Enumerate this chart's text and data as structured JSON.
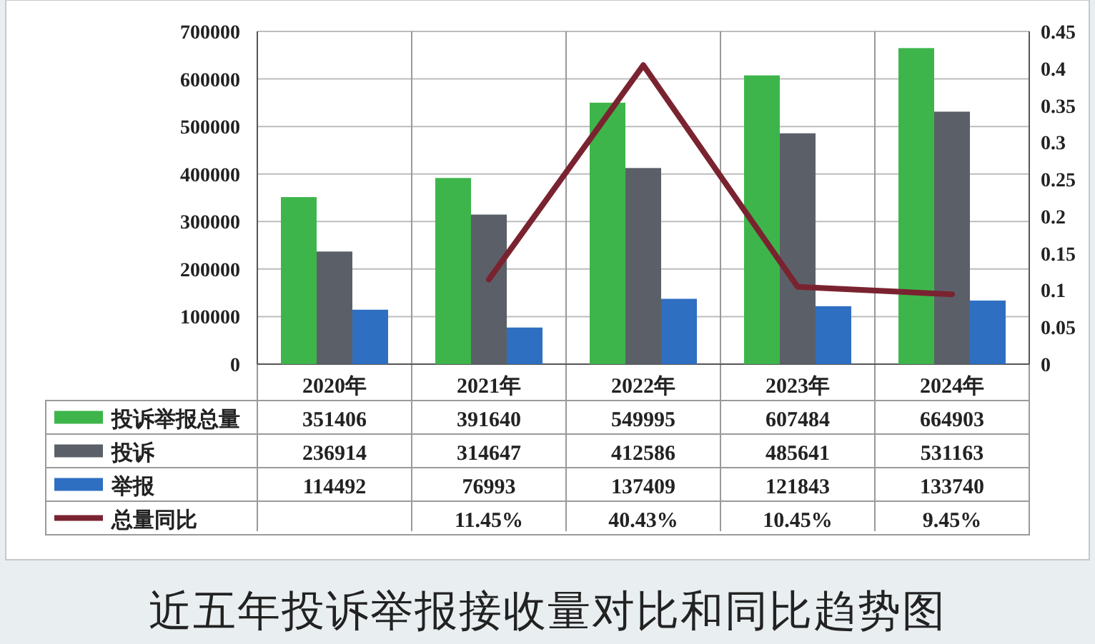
{
  "chart_data": {
    "type": "bar",
    "title": "近五年投诉举报接收量对比和同比趋势图",
    "categories": [
      "2020年",
      "2021年",
      "2022年",
      "2023年",
      "2024年"
    ],
    "series": [
      {
        "name": "投诉举报总量",
        "color": "#3db54b",
        "values": [
          351406,
          391640,
          549995,
          607484,
          664903
        ],
        "value_labels": [
          "351406",
          "391640",
          "549995",
          "607484",
          "664903"
        ]
      },
      {
        "name": "投诉",
        "color": "#5b6068",
        "values": [
          236914,
          314647,
          412586,
          485641,
          531163
        ],
        "value_labels": [
          "236914",
          "314647",
          "412586",
          "485641",
          "531163"
        ]
      },
      {
        "name": "举报",
        "color": "#2f6fc2",
        "values": [
          114492,
          76993,
          137409,
          121843,
          133740
        ],
        "value_labels": [
          "114492",
          "76993",
          "137409",
          "121843",
          "133740"
        ]
      },
      {
        "name": "总量同比",
        "type": "line",
        "axis": "y2",
        "color": "#7a2330",
        "values": [
          null,
          0.1145,
          0.4043,
          0.1045,
          0.0945
        ],
        "value_labels": [
          null,
          "11.45%",
          "40.43%",
          "10.45%",
          "9.45%"
        ]
      }
    ],
    "ylim": [
      0,
      700000
    ],
    "yticks": [
      0,
      100000,
      200000,
      300000,
      400000,
      500000,
      600000,
      700000
    ],
    "y2lim": [
      0,
      0.45
    ],
    "y2ticks": [
      0,
      0.05,
      0.1,
      0.15,
      0.2,
      0.25,
      0.3,
      0.35,
      0.4,
      0.45
    ],
    "grid": "y",
    "legend": "bottom"
  }
}
